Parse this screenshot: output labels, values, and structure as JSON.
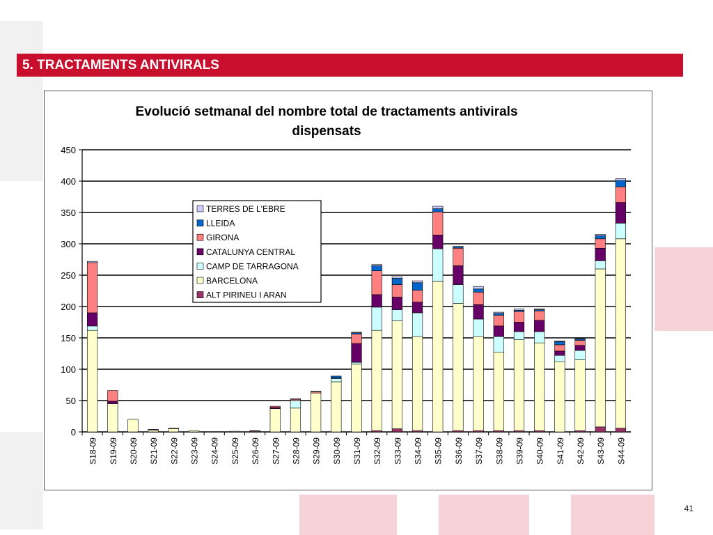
{
  "header": {
    "title": "5. TRACTAMENTS ANTIVIRALS"
  },
  "page_number": "41",
  "colors": {
    "header_bar": "#c8102e",
    "watermark": "#f4c9cf"
  },
  "chart_data": {
    "type": "bar",
    "stacked": true,
    "title_lines": [
      "Evolució setmanal del nombre total de tractaments antivirals",
      "dispensats"
    ],
    "xlabel": "",
    "ylabel": "",
    "ylim": [
      0,
      450
    ],
    "yticks": [
      0,
      50,
      100,
      150,
      200,
      250,
      300,
      350,
      400,
      450
    ],
    "grid": true,
    "legend_position": "inside-upper-left",
    "categories": [
      "S18-09",
      "S19-09",
      "S20-09",
      "S21-09",
      "S22-09",
      "S23-09",
      "S24-09",
      "S25-09",
      "S26-09",
      "S27-09",
      "S28-09",
      "S29-09",
      "S30-09",
      "S31-09",
      "S32-09",
      "S33-09",
      "S34-09",
      "S35-09",
      "S36-09",
      "S37-09",
      "S38-09",
      "S39-09",
      "S40-09",
      "S41-09",
      "S42-09",
      "S43-09",
      "S44-09"
    ],
    "series": [
      {
        "name": "ALT PIRINEU I ARAN",
        "color": "#993366",
        "values": [
          0,
          0,
          0,
          0,
          0,
          0,
          0,
          0,
          0,
          0,
          0,
          0,
          0,
          0,
          2,
          5,
          2,
          0,
          2,
          2,
          2,
          2,
          2,
          0,
          2,
          8,
          6
        ]
      },
      {
        "name": "BARCELONA",
        "color": "#ffffcc",
        "values": [
          162,
          45,
          20,
          3,
          5,
          2,
          0,
          1,
          1,
          37,
          38,
          62,
          80,
          108,
          160,
          172,
          150,
          240,
          203,
          150,
          125,
          145,
          140,
          112,
          113,
          252,
          302
        ]
      },
      {
        "name": "CAMP DE TARRAGONA",
        "color": "#ccffff",
        "values": [
          7,
          0,
          0,
          0,
          0,
          0,
          0,
          0,
          0,
          0,
          12,
          0,
          5,
          3,
          37,
          18,
          38,
          52,
          30,
          28,
          25,
          13,
          18,
          10,
          15,
          13,
          25
        ]
      },
      {
        "name": "CATALUNYA CENTRAL",
        "color": "#660066",
        "values": [
          21,
          4,
          0,
          1,
          0,
          0,
          0,
          0,
          1,
          2,
          0,
          0,
          0,
          30,
          20,
          20,
          17,
          22,
          30,
          23,
          17,
          15,
          18,
          7,
          8,
          20,
          33
        ]
      },
      {
        "name": "GIRONA",
        "color": "#ff8080",
        "values": [
          80,
          17,
          0,
          0,
          1,
          0,
          0,
          0,
          0,
          2,
          2,
          2,
          1,
          15,
          38,
          20,
          19,
          37,
          28,
          20,
          17,
          17,
          15,
          10,
          8,
          15,
          25
        ]
      },
      {
        "name": "LLEIDA",
        "color": "#0066cc",
        "values": [
          0,
          0,
          0,
          0,
          0,
          0,
          0,
          0,
          0,
          0,
          0,
          0,
          3,
          2,
          8,
          10,
          12,
          5,
          2,
          5,
          3,
          2,
          2,
          5,
          2,
          5,
          10
        ]
      },
      {
        "name": "TERRES DE L'EBRE",
        "color": "#ccccff",
        "values": [
          2,
          0,
          0,
          0,
          0,
          0,
          0,
          0,
          0,
          0,
          1,
          1,
          0,
          1,
          2,
          2,
          3,
          4,
          1,
          4,
          2,
          2,
          1,
          1,
          1,
          2,
          3
        ]
      }
    ]
  }
}
